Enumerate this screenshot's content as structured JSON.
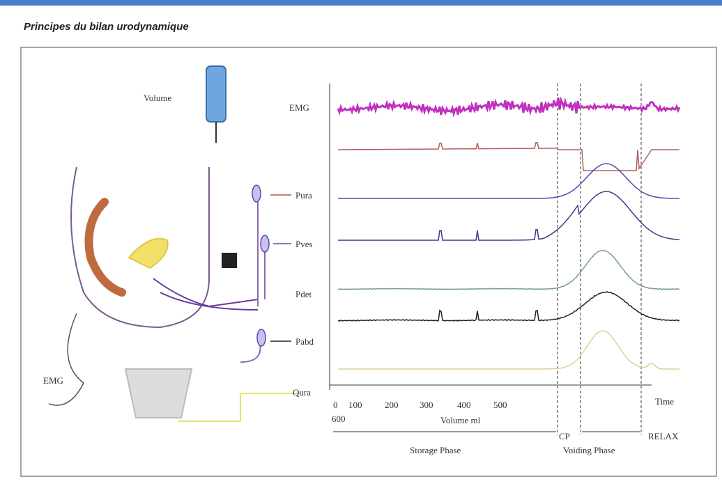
{
  "header": {
    "title": "Principes du bilan urodynamique"
  },
  "diagram": {
    "labels": {
      "volume": "Volume",
      "emg_left": "EMG"
    },
    "channels": [
      "EMG",
      "Pura",
      "Pves",
      "Pdet",
      "Pabd",
      "Qura"
    ],
    "axis": {
      "ticks": [
        "0",
        "100",
        "200",
        "300",
        "400",
        "500",
        "600"
      ],
      "x_label": "Volume ml",
      "time_label": "Time"
    },
    "phases": [
      "Storage Phase",
      "CP",
      "Voiding Phase",
      "RELAX"
    ]
  }
}
